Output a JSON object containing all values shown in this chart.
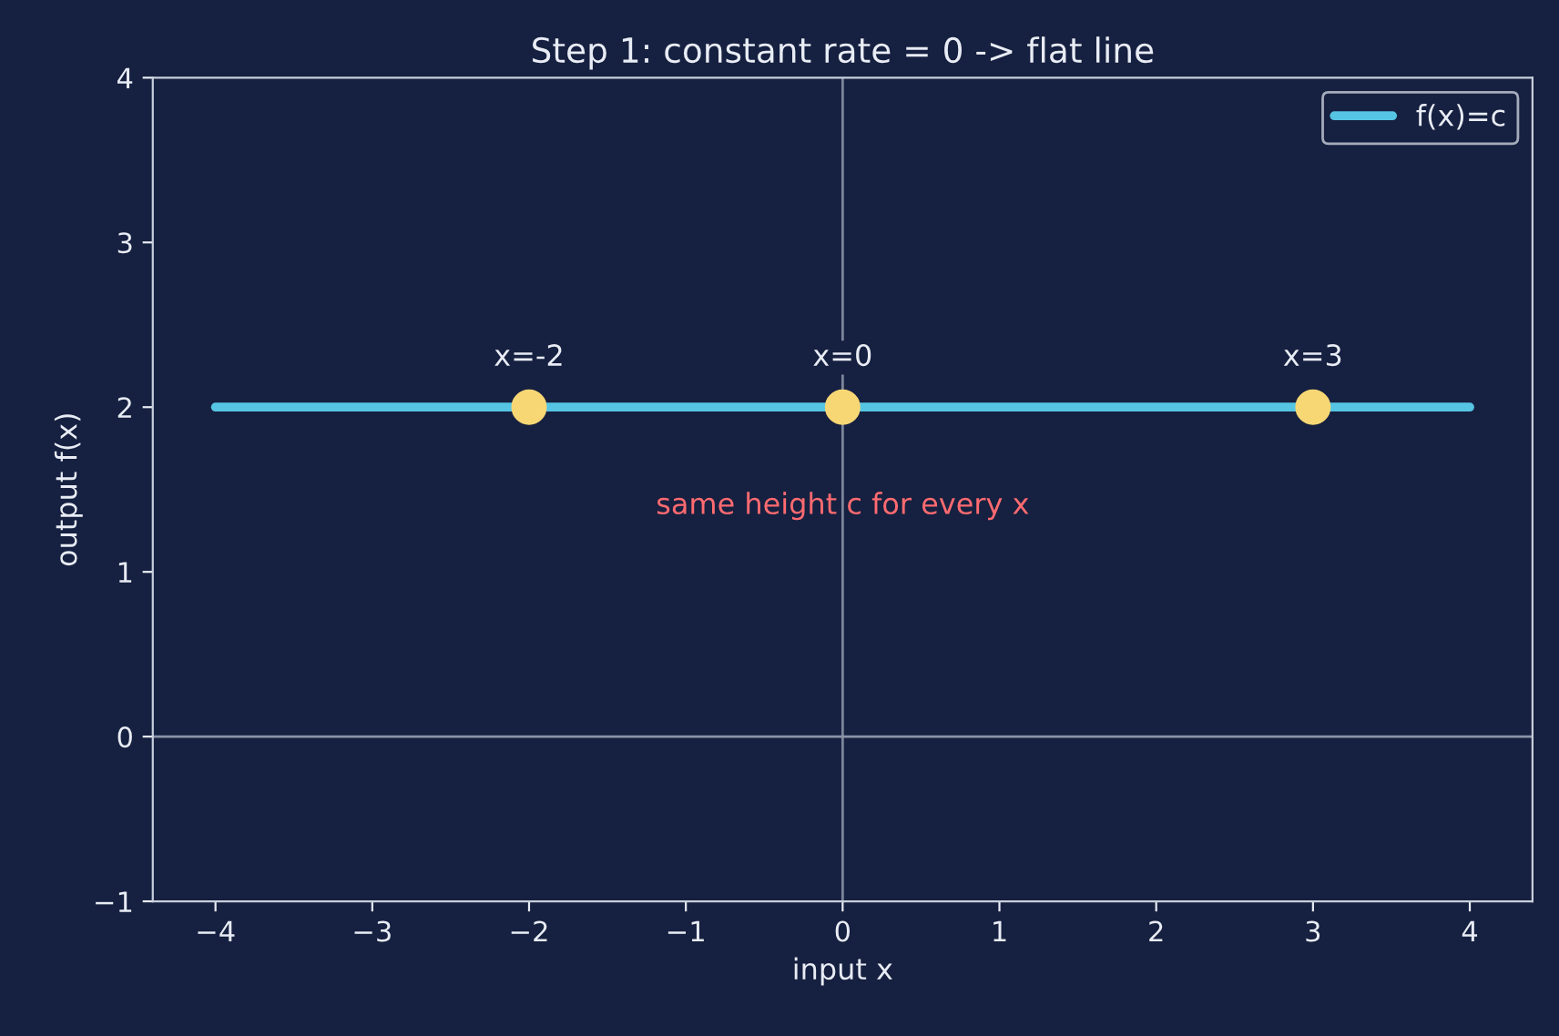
{
  "chart_data": {
    "type": "line",
    "title": "Step 1: constant rate = 0 -> flat line",
    "xlabel": "input x",
    "ylabel": "output f(x)",
    "series": [
      {
        "name": "f(x)=c",
        "color": "#56c5e3",
        "marker": "none",
        "x": [
          -4,
          4
        ],
        "values": [
          2,
          2
        ]
      },
      {
        "type": "scatter",
        "color": "#f7d774",
        "marker": "circle",
        "x": [
          -2,
          0,
          3
        ],
        "values": [
          2,
          2,
          2
        ]
      }
    ],
    "annotations": [
      {
        "text": "x=-2",
        "x": -2,
        "y": 2
      },
      {
        "text": "x=0",
        "x": 0,
        "y": 2
      },
      {
        "text": "x=3",
        "x": 3,
        "y": 2
      },
      "same height c for every x"
    ],
    "ref_lines": [
      {
        "axis": "x",
        "value": 0,
        "color": "#7d869c"
      },
      {
        "axis": "y",
        "value": 0,
        "color": "#8c94a8"
      }
    ],
    "xlim": [
      -4.4,
      4.4
    ],
    "ylim": [
      -1,
      4
    ],
    "xticks": [
      -4,
      -3,
      -2,
      -1,
      0,
      1,
      2,
      3,
      4
    ],
    "yticks": [
      -1,
      0,
      1,
      2,
      3,
      4
    ],
    "grid": false,
    "legend": "top right"
  }
}
